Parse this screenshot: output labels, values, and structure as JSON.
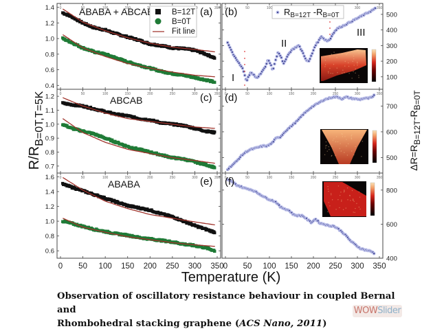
{
  "figure": {
    "xlabel": "Temperature (K)",
    "left_ylabel_main": "R/R",
    "left_ylabel_sub": "B=0T,T=5K",
    "right_ylabel_prefix": "ΔR=R",
    "right_ylabel_sub1": "B=12T",
    "right_ylabel_mid": "-R",
    "right_ylabel_sub2": "B=0T"
  },
  "caption": {
    "line1": "Observation of oscillatory resistance behaviour in coupled Bernal and",
    "line2_plain": "Rhombohedral stacking graphene (",
    "line2_italic": "ACS Nano, 2011",
    "line2_end": ")"
  },
  "watermark": {
    "part1": "WOW",
    "part2": "Slider"
  },
  "colors": {
    "b12": "#111111",
    "b0": "#1f7a36",
    "fit": "#a0332b",
    "diff": "#3a3f8c",
    "diff_halo": "#b9bde8"
  },
  "chart_data": [
    {
      "id": "a",
      "type": "line",
      "panel_label": "(a)",
      "annotation": "ABABA + ABCAB",
      "xlabel": "Temperature (K)",
      "ylabel": "R/R_B=0T,T=5K",
      "xlim": [
        0,
        350
      ],
      "ylim": [
        0.35,
        1.45
      ],
      "xticks": [
        0,
        50,
        100,
        150,
        200,
        250,
        300,
        350
      ],
      "yticks": [
        0.4,
        0.6,
        0.8,
        1.0,
        1.2,
        1.4
      ],
      "ytick_labels": [
        "0.4",
        "0.6",
        "0.8",
        "1.0",
        "1.2",
        "1.4"
      ],
      "legend": {
        "position": "top-right",
        "entries": [
          "B=12T",
          "B=0T",
          "Fit line"
        ]
      },
      "series": [
        {
          "name": "B=12T",
          "x": [
            5,
            25,
            50,
            75,
            100,
            125,
            150,
            175,
            200,
            225,
            250,
            275,
            300,
            325,
            345
          ],
          "y": [
            1.33,
            1.28,
            1.2,
            1.14,
            1.11,
            1.06,
            1.02,
            0.98,
            0.93,
            0.91,
            0.88,
            0.87,
            0.85,
            0.8,
            0.75
          ]
        },
        {
          "name": "B=0T",
          "x": [
            5,
            25,
            50,
            75,
            100,
            125,
            150,
            175,
            200,
            225,
            250,
            275,
            300,
            325,
            345
          ],
          "y": [
            1.0,
            0.95,
            0.88,
            0.83,
            0.8,
            0.75,
            0.7,
            0.66,
            0.62,
            0.58,
            0.55,
            0.53,
            0.5,
            0.47,
            0.44
          ]
        },
        {
          "name": "Fit B=12T",
          "x": [
            5,
            50,
            100,
            150,
            200,
            250,
            300,
            345
          ],
          "y": [
            1.38,
            1.21,
            1.1,
            1.01,
            0.94,
            0.89,
            0.86,
            0.83
          ]
        },
        {
          "name": "Fit B=0T",
          "x": [
            5,
            50,
            100,
            150,
            200,
            250,
            300,
            345
          ],
          "y": [
            1.05,
            0.88,
            0.77,
            0.68,
            0.62,
            0.57,
            0.53,
            0.51
          ]
        }
      ]
    },
    {
      "id": "c",
      "type": "line",
      "panel_label": "(c)",
      "annotation": "ABCAB",
      "xlim": [
        0,
        350
      ],
      "ylim": [
        0.65,
        1.25
      ],
      "xticks": [
        0,
        50,
        100,
        150,
        200,
        250,
        300,
        350
      ],
      "yticks": [
        0.7,
        0.8,
        0.9,
        1.0,
        1.1,
        1.2
      ],
      "ytick_labels": [
        "0.7",
        "0.8",
        "0.9",
        "1.0",
        "1.1",
        "1.2"
      ],
      "series": [
        {
          "name": "B=12T",
          "x": [
            5,
            25,
            50,
            75,
            100,
            125,
            150,
            175,
            200,
            225,
            250,
            275,
            300,
            325,
            345
          ],
          "y": [
            1.15,
            1.14,
            1.13,
            1.11,
            1.09,
            1.07,
            1.06,
            1.04,
            1.03,
            1.01,
            1.0,
            0.99,
            0.97,
            0.95,
            0.94
          ]
        },
        {
          "name": "B=0T",
          "x": [
            5,
            25,
            50,
            75,
            100,
            125,
            150,
            175,
            200,
            225,
            250,
            275,
            300,
            325,
            345
          ],
          "y": [
            1.0,
            0.97,
            0.95,
            0.93,
            0.9,
            0.87,
            0.84,
            0.82,
            0.8,
            0.78,
            0.76,
            0.75,
            0.73,
            0.71,
            0.69
          ]
        },
        {
          "name": "Fit B=12T",
          "x": [
            5,
            50,
            100,
            150,
            200,
            250,
            300,
            345
          ],
          "y": [
            1.19,
            1.13,
            1.08,
            1.04,
            1.02,
            1.0,
            0.98,
            0.97
          ]
        },
        {
          "name": "Fit B=0T",
          "x": [
            5,
            50,
            100,
            150,
            200,
            250,
            300,
            345
          ],
          "y": [
            1.04,
            0.94,
            0.87,
            0.82,
            0.79,
            0.76,
            0.74,
            0.72
          ]
        }
      ]
    },
    {
      "id": "e",
      "type": "line",
      "panel_label": "(e)",
      "annotation": "ABABA",
      "xlim": [
        0,
        350
      ],
      "ylim": [
        0.5,
        1.65
      ],
      "xticks": [
        0,
        50,
        100,
        150,
        200,
        250,
        300,
        350
      ],
      "xtick_labels": [
        "0",
        "50",
        "100",
        "150",
        "200",
        "250",
        "300",
        "350"
      ],
      "yticks": [
        0.6,
        0.8,
        1.0,
        1.2,
        1.4,
        1.6
      ],
      "ytick_labels": [
        "0.6",
        "0.8",
        "1.0",
        "1.2",
        "1.4",
        "1.6"
      ],
      "series": [
        {
          "name": "B=12T",
          "x": [
            5,
            25,
            50,
            75,
            100,
            125,
            150,
            175,
            200,
            225,
            250,
            275,
            300,
            325,
            345
          ],
          "y": [
            1.5,
            1.46,
            1.41,
            1.36,
            1.31,
            1.26,
            1.21,
            1.18,
            1.15,
            1.1,
            1.06,
            1.0,
            0.94,
            0.89,
            0.85
          ]
        },
        {
          "name": "B=0T",
          "x": [
            5,
            25,
            50,
            75,
            100,
            125,
            150,
            175,
            200,
            225,
            250,
            275,
            300,
            325,
            345
          ],
          "y": [
            1.0,
            0.97,
            0.93,
            0.89,
            0.86,
            0.83,
            0.81,
            0.78,
            0.76,
            0.74,
            0.72,
            0.69,
            0.67,
            0.64,
            0.6
          ]
        },
        {
          "name": "Fit B=12T",
          "x": [
            5,
            50,
            100,
            150,
            200,
            250,
            300,
            345
          ],
          "y": [
            1.59,
            1.42,
            1.27,
            1.17,
            1.09,
            1.04,
            0.99,
            0.95
          ]
        },
        {
          "name": "Fit B=0T",
          "x": [
            5,
            50,
            100,
            150,
            200,
            250,
            300,
            345
          ],
          "y": [
            1.04,
            0.92,
            0.85,
            0.79,
            0.75,
            0.71,
            0.68,
            0.66
          ]
        }
      ]
    },
    {
      "id": "b",
      "type": "scatter",
      "panel_label": "(b)",
      "legend": {
        "position": "top-center",
        "entries": [
          "R_B=12T - R_B=0T"
        ]
      },
      "annotations": [
        "I",
        "II",
        "III"
      ],
      "xlim": [
        0,
        350
      ],
      "ylim": [
        20,
        570
      ],
      "xticks": [
        0,
        50,
        100,
        150,
        200,
        250,
        300,
        350
      ],
      "yticks": [
        100,
        200,
        300,
        400,
        500
      ],
      "ytick_labels": [
        "100",
        "200",
        "300",
        "400",
        "500"
      ],
      "inset": "sample map with colorbar",
      "series": [
        {
          "name": "R_B=12T - R_B=0T",
          "x": [
            5,
            10,
            20,
            30,
            40,
            45,
            48,
            52,
            58,
            65,
            72,
            80,
            90,
            97,
            103,
            108,
            113,
            120,
            126,
            132,
            140,
            150,
            160,
            167,
            175,
            185,
            190,
            196,
            204,
            212,
            218,
            225,
            232,
            238,
            245,
            255,
            270,
            290,
            310,
            330,
            342
          ],
          "y": [
            320,
            290,
            230,
            190,
            150,
            100,
            70,
            100,
            130,
            110,
            90,
            120,
            160,
            210,
            180,
            140,
            200,
            260,
            230,
            180,
            230,
            270,
            290,
            300,
            260,
            200,
            200,
            240,
            300,
            330,
            360,
            340,
            330,
            340,
            380,
            410,
            430,
            460,
            490,
            520,
            540
          ]
        }
      ]
    },
    {
      "id": "d",
      "type": "scatter",
      "panel_label": "(d)",
      "xlim": [
        0,
        350
      ],
      "ylim": [
        440,
        765
      ],
      "xticks": [
        0,
        50,
        100,
        150,
        200,
        250,
        300,
        350
      ],
      "yticks": [
        500,
        600,
        700
      ],
      "ytick_labels": [
        "500",
        "600",
        "700"
      ],
      "inset": "sample map with colorbar",
      "series": [
        {
          "name": "R_B=12T - R_B=0T",
          "x": [
            5,
            15,
            25,
            35,
            45,
            55,
            65,
            75,
            85,
            95,
            105,
            115,
            125,
            135,
            145,
            155,
            165,
            175,
            185,
            195,
            205,
            215,
            225,
            235,
            245,
            255,
            265,
            275,
            285,
            295,
            305,
            315,
            325,
            335,
            340
          ],
          "y": [
            455,
            470,
            485,
            505,
            520,
            530,
            535,
            540,
            545,
            545,
            555,
            575,
            580,
            600,
            615,
            630,
            645,
            665,
            680,
            695,
            705,
            715,
            725,
            730,
            735,
            735,
            728,
            735,
            730,
            728,
            725,
            730,
            730,
            735,
            745
          ]
        }
      ]
    },
    {
      "id": "f",
      "type": "scatter",
      "panel_label": "(f)",
      "xlim": [
        0,
        350
      ],
      "ylim": [
        400,
        900
      ],
      "xticks": [
        0,
        50,
        100,
        150,
        200,
        250,
        300,
        350
      ],
      "xtick_labels": [
        "0",
        "50",
        "100",
        "150",
        "200",
        "250",
        "300",
        "350"
      ],
      "yticks": [
        400,
        600,
        800
      ],
      "ytick_labels": [
        "400",
        "600",
        "800"
      ],
      "inset": "sample map with colorbar",
      "series": [
        {
          "name": "R_B=12T - R_B=0T",
          "x": [
            5,
            15,
            25,
            35,
            45,
            55,
            65,
            75,
            85,
            95,
            105,
            115,
            125,
            135,
            145,
            155,
            165,
            175,
            185,
            195,
            205,
            215,
            225,
            235,
            245,
            255,
            265,
            275,
            285,
            295,
            305,
            315,
            325,
            335,
            340
          ],
          "y": [
            860,
            850,
            830,
            820,
            810,
            805,
            795,
            780,
            765,
            750,
            740,
            730,
            700,
            690,
            680,
            655,
            650,
            650,
            630,
            610,
            630,
            605,
            600,
            590,
            590,
            575,
            555,
            530,
            500,
            480,
            460,
            450,
            445,
            435,
            425
          ]
        }
      ]
    }
  ]
}
